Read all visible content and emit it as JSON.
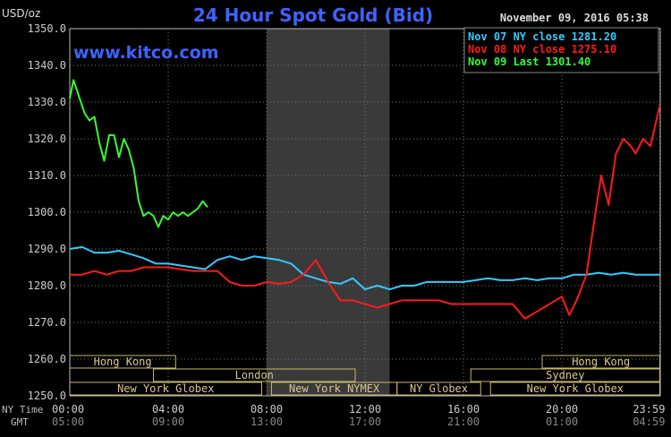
{
  "chart_data": {
    "type": "line",
    "title": "24 Hour Spot Gold (Bid)",
    "unit_label": "USD/oz",
    "timestamp": "November 09, 2016 05:38",
    "watermark": "www.kitco.com",
    "y_ticks": [
      "1350.0",
      "1340.0",
      "1330.0",
      "1320.0",
      "1310.0",
      "1300.0",
      "1290.0",
      "1280.0",
      "1270.0",
      "1260.0",
      "1250.0"
    ],
    "ylim": [
      1250,
      1350
    ],
    "xlim": [
      0,
      24
    ],
    "grid": true,
    "time_axis": {
      "ny_label": "NY Time",
      "gmt_label": "GMT",
      "ny_ticks": [
        "00:00",
        "04:00",
        "08:00",
        "12:00",
        "16:00",
        "20:00",
        "23:59"
      ],
      "gmt_ticks": [
        "05:00",
        "09:00",
        "13:00",
        "17:00",
        "21:00",
        "01:00",
        "04:59"
      ],
      "tick_hours": [
        0,
        4,
        8,
        12,
        16,
        20,
        23.98
      ]
    },
    "legend": [
      {
        "label": "Nov 07 NY close 1281.20",
        "color": "#33ccff"
      },
      {
        "label": "Nov 08 NY close 1275.10",
        "color": "#ff1a1a"
      },
      {
        "label": "Nov 09 Last 1301.40",
        "color": "#33ff33"
      }
    ],
    "shaded_hours": [
      8,
      13
    ],
    "sessions": [
      {
        "label": "Hong Kong",
        "start": 0,
        "end": 4.3,
        "row": 0
      },
      {
        "label": "Hong Kong",
        "start": 19.2,
        "end": 23.98,
        "row": 0
      },
      {
        "label": "London",
        "start": 3.4,
        "end": 11.6,
        "row": 1
      },
      {
        "label": "Sydney",
        "start": 16.3,
        "end": 23.98,
        "row": 1
      },
      {
        "label": "New York Globex",
        "start": 0,
        "end": 7.8,
        "row": 2
      },
      {
        "label": "New York NYMEX",
        "start": 8.2,
        "end": 13.3,
        "row": 2
      },
      {
        "label": "NY Globex",
        "start": 13.3,
        "end": 16.7,
        "row": 2
      },
      {
        "label": "New York Globex",
        "start": 17.1,
        "end": 23.98,
        "row": 2
      }
    ],
    "series": [
      {
        "name": "Nov 07 NY close 1281.20",
        "color": "#33ccff",
        "x": [
          0,
          0.5,
          1,
          1.5,
          2,
          2.5,
          3,
          3.5,
          4,
          4.5,
          5,
          5.5,
          6,
          6.5,
          7,
          7.5,
          8,
          8.5,
          9,
          9.5,
          10,
          10.5,
          11,
          11.5,
          12,
          12.5,
          13,
          13.5,
          14,
          14.5,
          15,
          15.5,
          16,
          16.5,
          17,
          17.5,
          18,
          18.5,
          19,
          19.5,
          20,
          20.5,
          21,
          21.5,
          22,
          22.5,
          23,
          23.5,
          23.98
        ],
        "y": [
          1290,
          1290.5,
          1289,
          1289,
          1289.5,
          1288.5,
          1287.5,
          1286,
          1286,
          1285.5,
          1285,
          1284.5,
          1287,
          1288,
          1287,
          1288,
          1287.5,
          1287,
          1286,
          1283,
          1282,
          1281,
          1280.5,
          1282,
          1279,
          1280,
          1279,
          1280,
          1280,
          1281,
          1281,
          1281,
          1281,
          1281.5,
          1282,
          1281.5,
          1281.5,
          1282,
          1281.5,
          1282,
          1282,
          1283,
          1283,
          1283.5,
          1283,
          1283.5,
          1283,
          1283,
          1283
        ]
      },
      {
        "name": "Nov 08 NY close 1275.10",
        "color": "#ff1a1a",
        "x": [
          0,
          0.5,
          1,
          1.5,
          2,
          2.5,
          3,
          3.5,
          4,
          4.5,
          5,
          5.5,
          6,
          6.5,
          7,
          7.5,
          8,
          8.5,
          9,
          9.5,
          10,
          10.5,
          11,
          11.5,
          12,
          12.5,
          13,
          13.5,
          14,
          14.5,
          15,
          15.5,
          16,
          16.5,
          17,
          17.5,
          18,
          18.5,
          19,
          19.5,
          20,
          20.3,
          20.6,
          21,
          21.3,
          21.6,
          21.9,
          22.2,
          22.5,
          22.8,
          23,
          23.3,
          23.6,
          23.98
        ],
        "y": [
          1283,
          1283,
          1284,
          1283,
          1284,
          1284,
          1285,
          1285,
          1285,
          1284.5,
          1284,
          1284,
          1284,
          1281,
          1280,
          1280,
          1281,
          1280.5,
          1281,
          1283,
          1287,
          1281,
          1276,
          1276,
          1275,
          1274,
          1275,
          1276,
          1276,
          1276,
          1276,
          1275,
          1275,
          1275,
          1275,
          1275,
          1275,
          1271,
          1273,
          1275,
          1277,
          1272,
          1276,
          1283,
          1297,
          1310,
          1302,
          1316,
          1320,
          1318,
          1316,
          1320,
          1318,
          1329
        ]
      },
      {
        "name": "Nov 09 Last 1301.40",
        "color": "#33ff33",
        "x": [
          0,
          0.15,
          0.3,
          0.45,
          0.6,
          0.8,
          1.0,
          1.2,
          1.4,
          1.6,
          1.8,
          2.0,
          2.2,
          2.4,
          2.6,
          2.8,
          3.0,
          3.2,
          3.4,
          3.6,
          3.8,
          4.0,
          4.2,
          4.4,
          4.6,
          4.8,
          5.0,
          5.2,
          5.4,
          5.6
        ],
        "y": [
          1331,
          1336,
          1333,
          1330,
          1327,
          1325,
          1326,
          1319,
          1314,
          1321,
          1321,
          1315,
          1320,
          1317,
          1312,
          1303,
          1299,
          1300,
          1299,
          1296,
          1299,
          1298,
          1300,
          1299,
          1300,
          1299,
          1300,
          1301,
          1303,
          1301.4
        ]
      }
    ]
  }
}
